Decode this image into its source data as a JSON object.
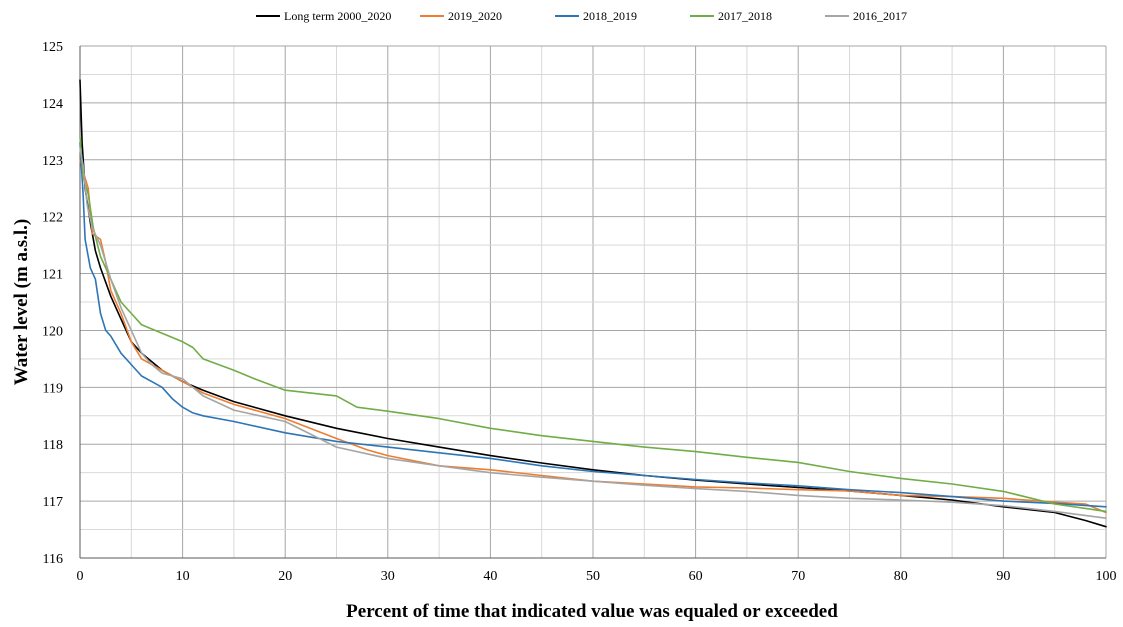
{
  "chart_data": {
    "type": "line",
    "title": "",
    "xlabel": "Percent of time that indicated value was equaled or exceeded",
    "ylabel": "Water level (m a.s.l.)",
    "xlim": [
      0,
      100
    ],
    "ylim": [
      116,
      125
    ],
    "x_major_ticks": [
      0,
      10,
      20,
      30,
      40,
      50,
      60,
      70,
      80,
      90,
      100
    ],
    "x_minor_step": 5,
    "y_ticks": [
      116,
      117,
      118,
      119,
      120,
      121,
      122,
      123,
      124,
      125
    ],
    "y_minor_step": 0.5,
    "grid": true,
    "legend_position": "top",
    "series": [
      {
        "name": "Long term 2000_2020",
        "color": "#000000",
        "points": [
          [
            0,
            124.4
          ],
          [
            0.2,
            123.3
          ],
          [
            0.5,
            122.5
          ],
          [
            1,
            121.9
          ],
          [
            1.5,
            121.4
          ],
          [
            2,
            121.1
          ],
          [
            3,
            120.6
          ],
          [
            4,
            120.2
          ],
          [
            5,
            119.8
          ],
          [
            6,
            119.6
          ],
          [
            8,
            119.3
          ],
          [
            10,
            119.1
          ],
          [
            12,
            118.95
          ],
          [
            15,
            118.75
          ],
          [
            20,
            118.5
          ],
          [
            25,
            118.28
          ],
          [
            30,
            118.1
          ],
          [
            35,
            117.95
          ],
          [
            40,
            117.8
          ],
          [
            45,
            117.67
          ],
          [
            50,
            117.55
          ],
          [
            55,
            117.45
          ],
          [
            60,
            117.37
          ],
          [
            65,
            117.3
          ],
          [
            70,
            117.24
          ],
          [
            75,
            117.18
          ],
          [
            80,
            117.1
          ],
          [
            85,
            117.02
          ],
          [
            90,
            116.9
          ],
          [
            95,
            116.8
          ],
          [
            98,
            116.66
          ],
          [
            100,
            116.55
          ]
        ]
      },
      {
        "name": "2019_2020",
        "color": "#ed7d31",
        "points": [
          [
            0,
            123.0
          ],
          [
            0.3,
            122.8
          ],
          [
            0.8,
            122.5
          ],
          [
            1.2,
            121.7
          ],
          [
            2,
            121.6
          ],
          [
            2.5,
            121.2
          ],
          [
            3,
            120.7
          ],
          [
            4,
            120.3
          ],
          [
            5,
            119.8
          ],
          [
            6,
            119.5
          ],
          [
            7,
            119.4
          ],
          [
            8,
            119.3
          ],
          [
            10,
            119.1
          ],
          [
            12,
            118.9
          ],
          [
            15,
            118.7
          ],
          [
            20,
            118.45
          ],
          [
            25,
            118.1
          ],
          [
            28,
            117.9
          ],
          [
            30,
            117.8
          ],
          [
            35,
            117.62
          ],
          [
            40,
            117.55
          ],
          [
            45,
            117.45
          ],
          [
            50,
            117.35
          ],
          [
            55,
            117.3
          ],
          [
            60,
            117.25
          ],
          [
            65,
            117.23
          ],
          [
            70,
            117.2
          ],
          [
            75,
            117.18
          ],
          [
            80,
            117.1
          ],
          [
            85,
            117.08
          ],
          [
            90,
            117.05
          ],
          [
            95,
            116.98
          ],
          [
            98,
            116.95
          ],
          [
            100,
            116.8
          ]
        ]
      },
      {
        "name": "2018_2019",
        "color": "#2e75b6",
        "points": [
          [
            0,
            123.3
          ],
          [
            0.3,
            122.4
          ],
          [
            0.5,
            121.6
          ],
          [
            1,
            121.1
          ],
          [
            1.5,
            120.9
          ],
          [
            2,
            120.3
          ],
          [
            2.5,
            120.0
          ],
          [
            3,
            119.9
          ],
          [
            4,
            119.6
          ],
          [
            5,
            119.4
          ],
          [
            6,
            119.2
          ],
          [
            7,
            119.1
          ],
          [
            8,
            119.0
          ],
          [
            9,
            118.8
          ],
          [
            10,
            118.65
          ],
          [
            11,
            118.55
          ],
          [
            12,
            118.5
          ],
          [
            15,
            118.4
          ],
          [
            20,
            118.2
          ],
          [
            25,
            118.05
          ],
          [
            30,
            117.95
          ],
          [
            35,
            117.85
          ],
          [
            40,
            117.75
          ],
          [
            45,
            117.62
          ],
          [
            50,
            117.52
          ],
          [
            55,
            117.45
          ],
          [
            60,
            117.38
          ],
          [
            65,
            117.32
          ],
          [
            70,
            117.27
          ],
          [
            75,
            117.2
          ],
          [
            80,
            117.15
          ],
          [
            85,
            117.08
          ],
          [
            90,
            117.0
          ],
          [
            95,
            116.96
          ],
          [
            100,
            116.9
          ]
        ]
      },
      {
        "name": "2017_2018",
        "color": "#70ad47",
        "points": [
          [
            0,
            123.4
          ],
          [
            0.3,
            122.7
          ],
          [
            0.8,
            122.4
          ],
          [
            1.3,
            121.8
          ],
          [
            2,
            121.3
          ],
          [
            3,
            120.9
          ],
          [
            4,
            120.5
          ],
          [
            5,
            120.3
          ],
          [
            6,
            120.1
          ],
          [
            8,
            119.95
          ],
          [
            10,
            119.8
          ],
          [
            11,
            119.7
          ],
          [
            12,
            119.5
          ],
          [
            15,
            119.3
          ],
          [
            17,
            119.15
          ],
          [
            20,
            118.95
          ],
          [
            25,
            118.85
          ],
          [
            27,
            118.65
          ],
          [
            30,
            118.58
          ],
          [
            35,
            118.45
          ],
          [
            40,
            118.28
          ],
          [
            45,
            118.15
          ],
          [
            50,
            118.05
          ],
          [
            55,
            117.95
          ],
          [
            60,
            117.87
          ],
          [
            65,
            117.77
          ],
          [
            70,
            117.68
          ],
          [
            75,
            117.52
          ],
          [
            80,
            117.4
          ],
          [
            85,
            117.3
          ],
          [
            90,
            117.17
          ],
          [
            95,
            116.95
          ],
          [
            100,
            116.82
          ]
        ]
      },
      {
        "name": "2016_2017",
        "color": "#a5a5a5",
        "points": [
          [
            0,
            123.2
          ],
          [
            0.3,
            122.9
          ],
          [
            0.7,
            122.2
          ],
          [
            1.2,
            121.8
          ],
          [
            2,
            121.5
          ],
          [
            2.5,
            121.2
          ],
          [
            3,
            120.9
          ],
          [
            4,
            120.4
          ],
          [
            5,
            120.0
          ],
          [
            6,
            119.6
          ],
          [
            7,
            119.4
          ],
          [
            8,
            119.25
          ],
          [
            10,
            119.15
          ],
          [
            12,
            118.85
          ],
          [
            15,
            118.6
          ],
          [
            20,
            118.4
          ],
          [
            25,
            117.95
          ],
          [
            30,
            117.75
          ],
          [
            35,
            117.62
          ],
          [
            40,
            117.5
          ],
          [
            45,
            117.42
          ],
          [
            50,
            117.35
          ],
          [
            55,
            117.28
          ],
          [
            60,
            117.22
          ],
          [
            65,
            117.17
          ],
          [
            70,
            117.1
          ],
          [
            75,
            117.05
          ],
          [
            80,
            117.02
          ],
          [
            85,
            116.98
          ],
          [
            90,
            116.92
          ],
          [
            95,
            116.82
          ],
          [
            100,
            116.7
          ]
        ]
      }
    ]
  }
}
